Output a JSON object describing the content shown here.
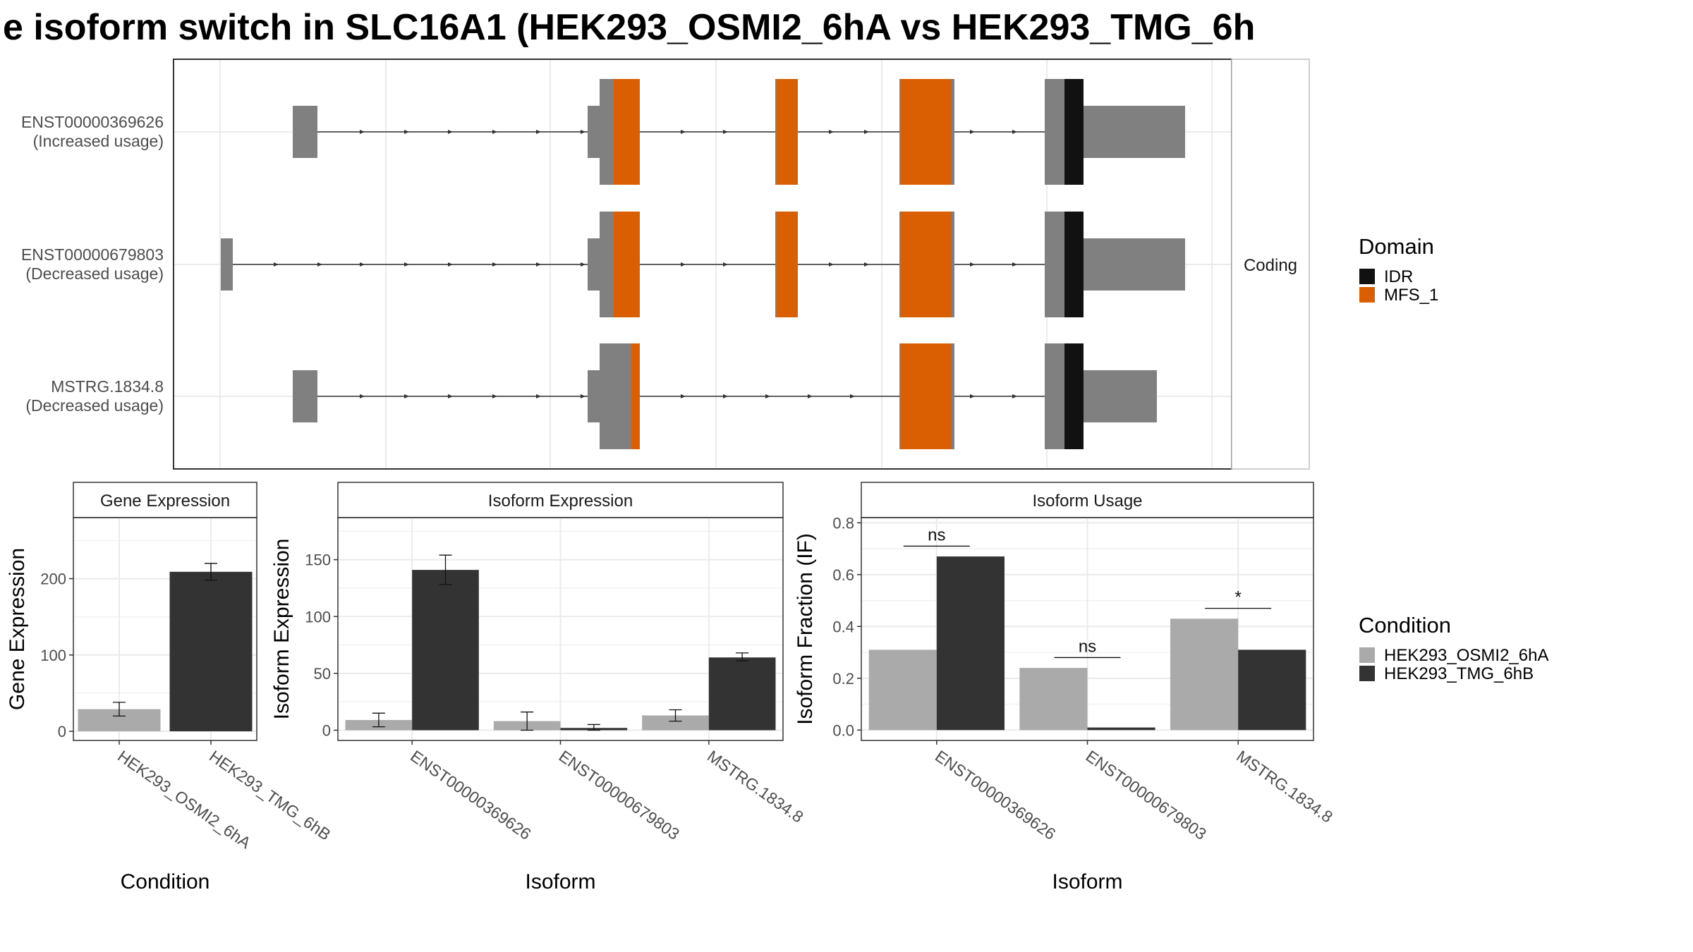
{
  "title": "e isoform switch in SLC16A1 (HEK293_OSMI2_6hA vs HEK293_TMG_6h",
  "colors": {
    "idr": "#111111",
    "mfs": "#d95f02",
    "exon": "#808080",
    "cond_a": "#aaaaaa",
    "cond_b": "#333333",
    "grid": "#ebebeb",
    "panel_border": "#333333",
    "strip_bg": "#ffffff"
  },
  "chart_data": [
    {
      "type": "gene-structure",
      "isoforms": [
        {
          "id": "ENST00000369626",
          "status": "(Increased usage)"
        },
        {
          "id": "ENST00000679803",
          "status": "(Decreased usage)"
        },
        {
          "id": "MSTRG.1834.8",
          "status": "(Decreased usage)"
        }
      ],
      "facet_label": "Coding",
      "legend": {
        "title": "Domain",
        "items": [
          {
            "label": "IDR",
            "color": "#111111"
          },
          {
            "label": "MFS_1",
            "color": "#d95f02"
          }
        ]
      }
    },
    {
      "type": "bar",
      "title": "Gene Expression",
      "xlabel": "Condition",
      "ylabel": "Gene Expression",
      "categories": [
        "HEK293_OSMI2_6hA",
        "HEK293_TMG_6hB"
      ],
      "values": [
        29,
        209
      ],
      "errors": [
        [
          20,
          38
        ],
        [
          198,
          220
        ]
      ],
      "ylim": [
        -12,
        280
      ],
      "yticks": [
        0,
        100,
        200
      ]
    },
    {
      "type": "bar",
      "title": "Isoform Expression",
      "xlabel": "Isoform",
      "ylabel": "Isoform Expression",
      "categories": [
        "ENST00000369626",
        "ENST00000679803",
        "MSTRG.1834.8"
      ],
      "series": [
        {
          "name": "HEK293_OSMI2_6hA",
          "values": [
            9,
            8,
            13
          ],
          "errors": [
            [
              3,
              15
            ],
            [
              0,
              16
            ],
            [
              8,
              18
            ]
          ]
        },
        {
          "name": "HEK293_TMG_6hB",
          "values": [
            141,
            2,
            64
          ],
          "errors": [
            [
              128,
              154
            ],
            [
              0,
              5
            ],
            [
              61,
              68
            ]
          ]
        }
      ],
      "ylim": [
        -9,
        187
      ],
      "yticks": [
        0,
        50,
        100,
        150
      ]
    },
    {
      "type": "bar",
      "title": "Isoform Usage",
      "xlabel": "Isoform",
      "ylabel": "Isoform Fraction (IF)",
      "categories": [
        "ENST00000369626",
        "ENST00000679803",
        "MSTRG.1834.8"
      ],
      "series": [
        {
          "name": "HEK293_OSMI2_6hA",
          "values": [
            0.31,
            0.24,
            0.43
          ]
        },
        {
          "name": "HEK293_TMG_6hB",
          "values": [
            0.67,
            0.01,
            0.31
          ]
        }
      ],
      "significance": [
        "ns",
        "ns",
        "*"
      ],
      "ylim": [
        -0.04,
        0.82
      ],
      "yticks": [
        "0.0",
        "0.2",
        "0.4",
        "0.6",
        "0.8"
      ],
      "legend": {
        "title": "Condition",
        "items": [
          {
            "label": "HEK293_OSMI2_6hA",
            "color": "#aaaaaa"
          },
          {
            "label": "HEK293_TMG_6hB",
            "color": "#333333"
          }
        ]
      }
    }
  ]
}
